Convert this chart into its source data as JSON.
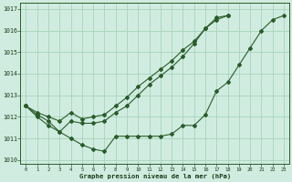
{
  "title": "Graphe pression niveau de la mer (hPa)",
  "background_color": "#d0ece0",
  "grid_color": "#a8d4bc",
  "line_color": "#2a5c2a",
  "ylim": [
    1009.8,
    1017.3
  ],
  "yticks": [
    1010,
    1011,
    1012,
    1013,
    1014,
    1015,
    1016,
    1017
  ],
  "xlim": [
    -0.5,
    23.5
  ],
  "line1_x": [
    0,
    1,
    2,
    3,
    4,
    5,
    6,
    7,
    8,
    9,
    10,
    11,
    12,
    13,
    14,
    15,
    16,
    17,
    18,
    19,
    20,
    21,
    22,
    23
  ],
  "line1_y": [
    1012.5,
    1012.0,
    1011.6,
    1011.3,
    1011.0,
    1010.7,
    1010.5,
    1010.4,
    1011.1,
    1011.1,
    1011.1,
    1011.1,
    1011.1,
    1011.2,
    1011.6,
    1011.6,
    1012.1,
    1013.2,
    1013.6,
    1014.4,
    1015.2,
    1016.0,
    1016.5,
    1016.7
  ],
  "line2_x": [
    0,
    1,
    2,
    3,
    4,
    5,
    6,
    7,
    8,
    9,
    10,
    11,
    12,
    13,
    14,
    15,
    16,
    17,
    18,
    19,
    20,
    21,
    22,
    23
  ],
  "line2_y": [
    1012.5,
    1012.1,
    1011.8,
    1011.3,
    1011.8,
    1011.7,
    1011.7,
    1011.8,
    1012.2,
    1012.5,
    1013.0,
    1013.5,
    1013.9,
    1014.3,
    1014.8,
    1015.4,
    1016.1,
    1016.5,
    1016.7,
    null,
    null,
    null,
    null,
    null
  ],
  "line3_x": [
    0,
    1,
    2,
    3,
    4,
    5,
    6,
    7,
    8,
    9,
    10,
    11,
    12,
    13,
    14,
    15,
    16,
    17,
    18,
    19,
    20,
    21,
    22,
    23
  ],
  "line3_y": [
    1012.5,
    1012.2,
    1012.0,
    1011.8,
    1012.2,
    1011.9,
    1012.0,
    1012.1,
    1012.5,
    1012.9,
    1013.4,
    1013.8,
    1014.2,
    1014.6,
    1015.1,
    1015.5,
    1016.1,
    1016.6,
    1016.7,
    null,
    null,
    null,
    null,
    null
  ]
}
